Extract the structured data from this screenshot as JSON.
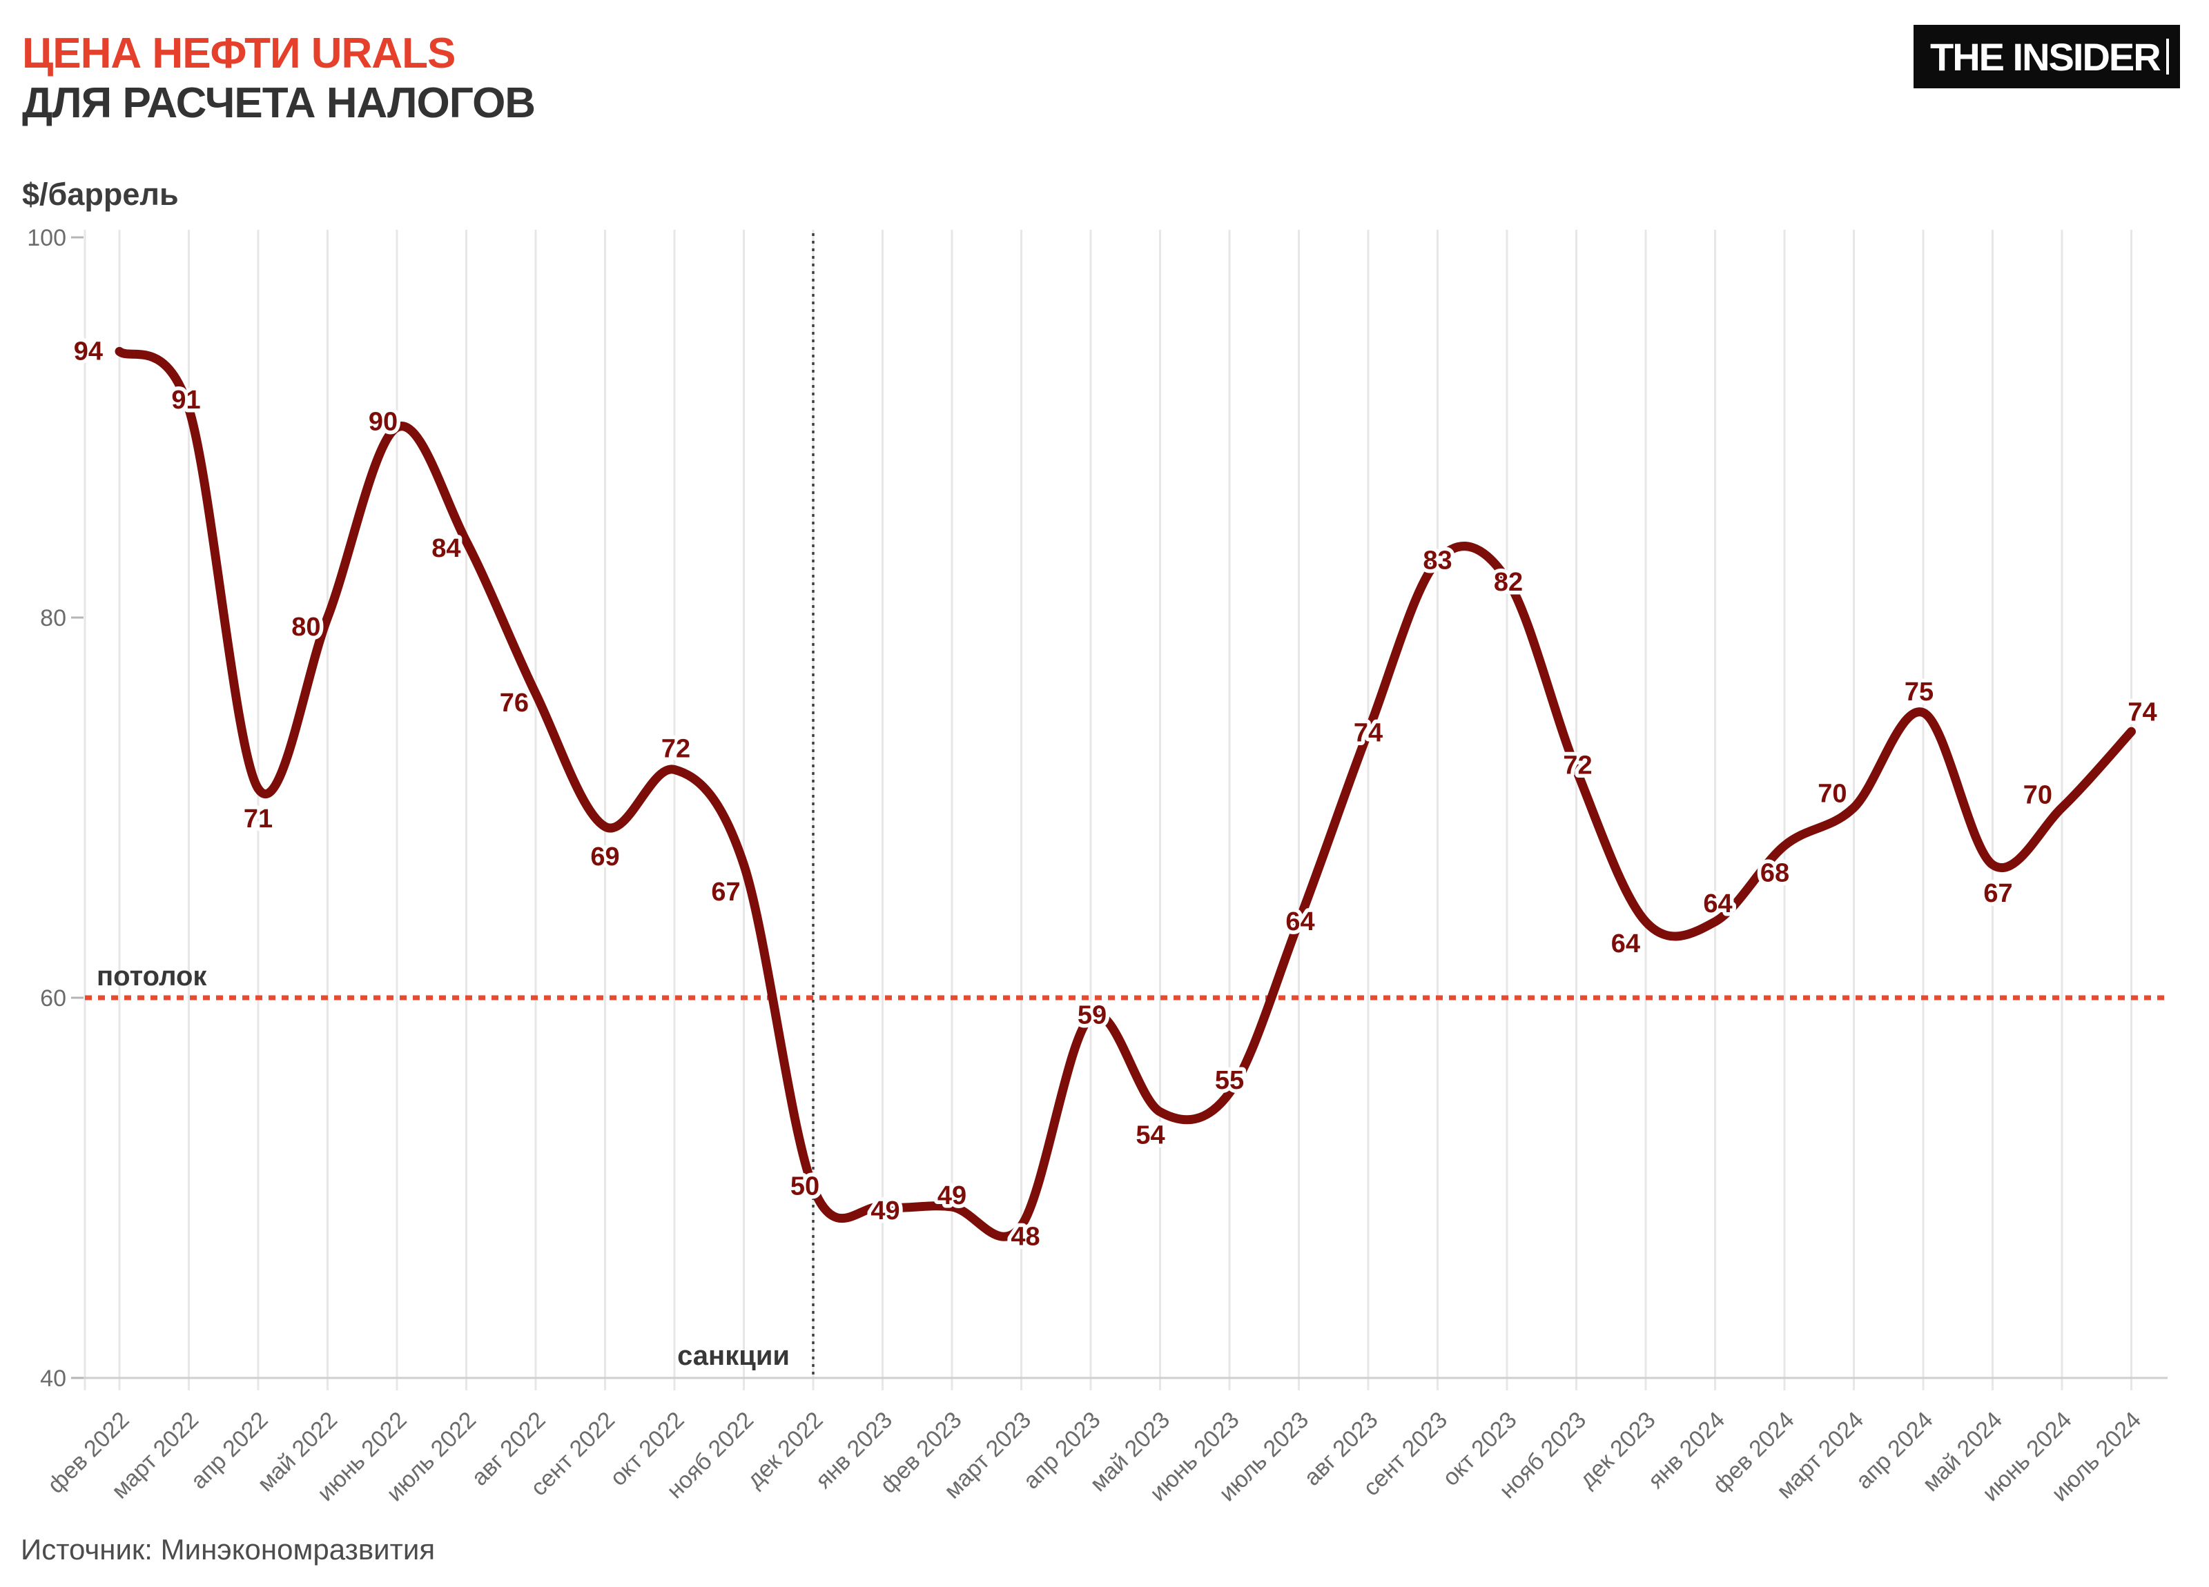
{
  "header": {
    "title_line1": "ЦЕНА НЕФТИ URALS",
    "title_line2": "ДЛЯ РАСЧЕТА НАЛОГОВ"
  },
  "logo": {
    "text": "THE INSIDER"
  },
  "chart": {
    "unit_label": "$/баррель"
  },
  "footer": {
    "source": "Источник: Минэкономразвития"
  },
  "colors": {
    "accent_red": "#e5402c",
    "ceiling_red": "#e84a31",
    "line_maroon": "#7d0d08",
    "text_dark": "#383838",
    "axis_gray": "#6b6b6b",
    "grid_gray": "#e7e7e7",
    "axis_line_gray": "#cfcfcf",
    "sanctions_gray": "#3f3f3f"
  },
  "chart_data": {
    "type": "line",
    "title": "ЦЕНА НЕФТИ URALS ДЛЯ РАСЧЕТА НАЛОГОВ",
    "ylabel": "$/баррель",
    "xlabel": "",
    "ylim": [
      40,
      100
    ],
    "yticks": [
      40,
      60,
      80,
      100
    ],
    "grid": "vertical",
    "legend": "none",
    "categories": [
      "фев 2022",
      "март 2022",
      "апр 2022",
      "май 2022",
      "июнь 2022",
      "июль 2022",
      "авг 2022",
      "сент 2022",
      "окт 2022",
      "нояб 2022",
      "дек 2022",
      "янв 2023",
      "фев 2023",
      "март 2023",
      "апр 2023",
      "май 2023",
      "июнь 2023",
      "июль 2023",
      "авг 2023",
      "сент 2023",
      "окт 2023",
      "нояб 2023",
      "дек 2023",
      "янв 2024",
      "фев 2024",
      "март 2024",
      "апр 2024",
      "май 2024",
      "июнь 2024",
      "июль 2024"
    ],
    "values": [
      94,
      91,
      71,
      80,
      90,
      84,
      76,
      69,
      72,
      67,
      50,
      49,
      49,
      48,
      59,
      54,
      55,
      64,
      74,
      83,
      82,
      72,
      64,
      64,
      68,
      70,
      75,
      67,
      70,
      74
    ],
    "annotations": {
      "ceiling_line": {
        "value": 60,
        "label": "потолок"
      },
      "sanctions_vline": {
        "category": "дек 2022",
        "label": "санкции"
      }
    }
  }
}
